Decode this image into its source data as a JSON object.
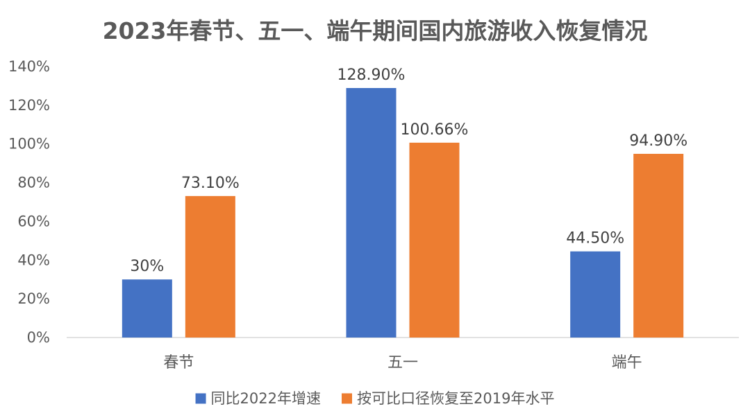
{
  "chart_data": {
    "type": "bar",
    "title": "2023年春节、五一、端午期间国内旅游收入恢复情况",
    "xlabel": "",
    "ylabel": "",
    "categories": [
      "春节",
      "五一",
      "端午"
    ],
    "ylim": [
      0,
      140
    ],
    "yticks": [
      0,
      20,
      40,
      60,
      80,
      100,
      120,
      140
    ],
    "ytick_labels": [
      "0%",
      "20%",
      "40%",
      "60%",
      "80%",
      "100%",
      "120%",
      "140%"
    ],
    "grid": false,
    "legend_position": "bottom",
    "series": [
      {
        "name": "同比2022年增速",
        "color": "#4472C4",
        "values": [
          30,
          128.9,
          44.5
        ],
        "labels": [
          "30%",
          "128.90%",
          "44.50%"
        ]
      },
      {
        "name": "按可比口径恢复至2019年水平",
        "color": "#ED7D31",
        "values": [
          73.1,
          100.66,
          94.9
        ],
        "labels": [
          "73.10%",
          "100.66%",
          "94.90%"
        ]
      }
    ]
  },
  "style": {
    "axis_color": "#D9D9D9",
    "text_color": "#595959"
  }
}
